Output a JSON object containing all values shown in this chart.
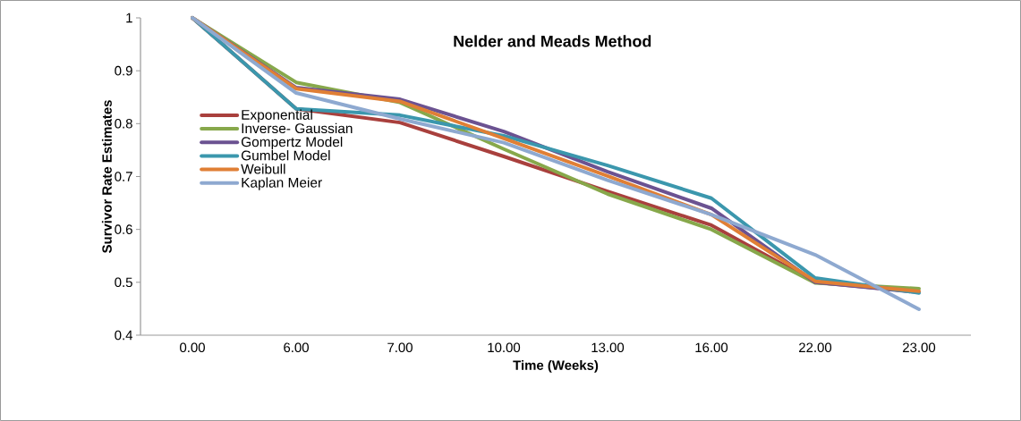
{
  "chart_data": {
    "type": "line",
    "title": "Nelder and Meads Method",
    "xlabel": "Time (Weeks)",
    "ylabel": "Survivor Rate Estimates",
    "categories": [
      "0.00",
      "6.00",
      "7.00",
      "10.00",
      "13.00",
      "16.00",
      "22.00",
      "23.00"
    ],
    "series": [
      {
        "name": "Exponential",
        "color": "#a9403d",
        "values": [
          1,
          0.828,
          0.802,
          0.738,
          0.672,
          0.608,
          0.5,
          0.482
        ]
      },
      {
        "name": "Inverse- Gaussian",
        "color": "#87a84b",
        "values": [
          1,
          0.878,
          0.84,
          0.752,
          0.667,
          0.6,
          0.499,
          0.488
        ]
      },
      {
        "name": "Gompertz Model",
        "color": "#6b5291",
        "values": [
          1,
          0.868,
          0.846,
          0.785,
          0.709,
          0.64,
          0.5,
          0.481
        ]
      },
      {
        "name": "Gumbel Model",
        "color": "#3b97ad",
        "values": [
          1,
          0.828,
          0.816,
          0.777,
          0.721,
          0.659,
          0.508,
          0.48
        ]
      },
      {
        "name": "Weibull",
        "color": "#e07f35",
        "values": [
          1,
          0.866,
          0.842,
          0.772,
          0.701,
          0.628,
          0.502,
          0.483
        ]
      },
      {
        "name": "Kaplan Meier",
        "color": "#8ea9d0",
        "values": [
          1,
          0.858,
          0.809,
          0.764,
          0.693,
          0.628,
          0.552,
          0.449
        ]
      }
    ],
    "ylim": [
      0.4,
      1
    ],
    "yticks": [
      0.4,
      0.5,
      0.6,
      0.7,
      0.8,
      0.9,
      1
    ],
    "grid": false,
    "legend": "left",
    "marker": "none",
    "line_style": "solid"
  }
}
